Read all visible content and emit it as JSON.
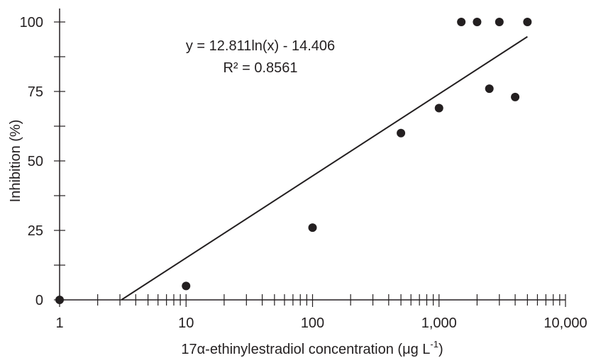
{
  "chart_data": {
    "type": "scatter",
    "x_scale": "log",
    "xlabel": "17α-ethinylestradiol concentration (μg L",
    "xlabel_sup": "-1",
    "xlabel_close": ")",
    "ylabel": "Inhibition (%)",
    "xlim": [
      1,
      10000
    ],
    "ylim": [
      0,
      100
    ],
    "x_ticks": [
      1,
      10,
      100,
      1000,
      10000
    ],
    "x_tick_labels": [
      "1",
      "10",
      "100",
      "1,000",
      "10,000"
    ],
    "y_ticks": [
      0,
      25,
      50,
      75,
      100
    ],
    "y_tick_labels": [
      "0",
      "25",
      "50",
      "75",
      "100"
    ],
    "points": [
      {
        "x": 1,
        "y": 0
      },
      {
        "x": 10,
        "y": 5
      },
      {
        "x": 100,
        "y": 26
      },
      {
        "x": 500,
        "y": 60
      },
      {
        "x": 1000,
        "y": 69
      },
      {
        "x": 1500,
        "y": 100
      },
      {
        "x": 2000,
        "y": 100
      },
      {
        "x": 2500,
        "y": 76
      },
      {
        "x": 3000,
        "y": 100
      },
      {
        "x": 4000,
        "y": 73
      },
      {
        "x": 5000,
        "y": 100
      }
    ],
    "trendline": {
      "type": "logarithmic",
      "a": 12.811,
      "b": -14.406,
      "x_range": [
        3.08,
        5000
      ],
      "equation": "y = 12.811ln(x) - 14.406",
      "r_squared": "R² = 0.8561"
    },
    "grid": false,
    "legend": "none"
  }
}
